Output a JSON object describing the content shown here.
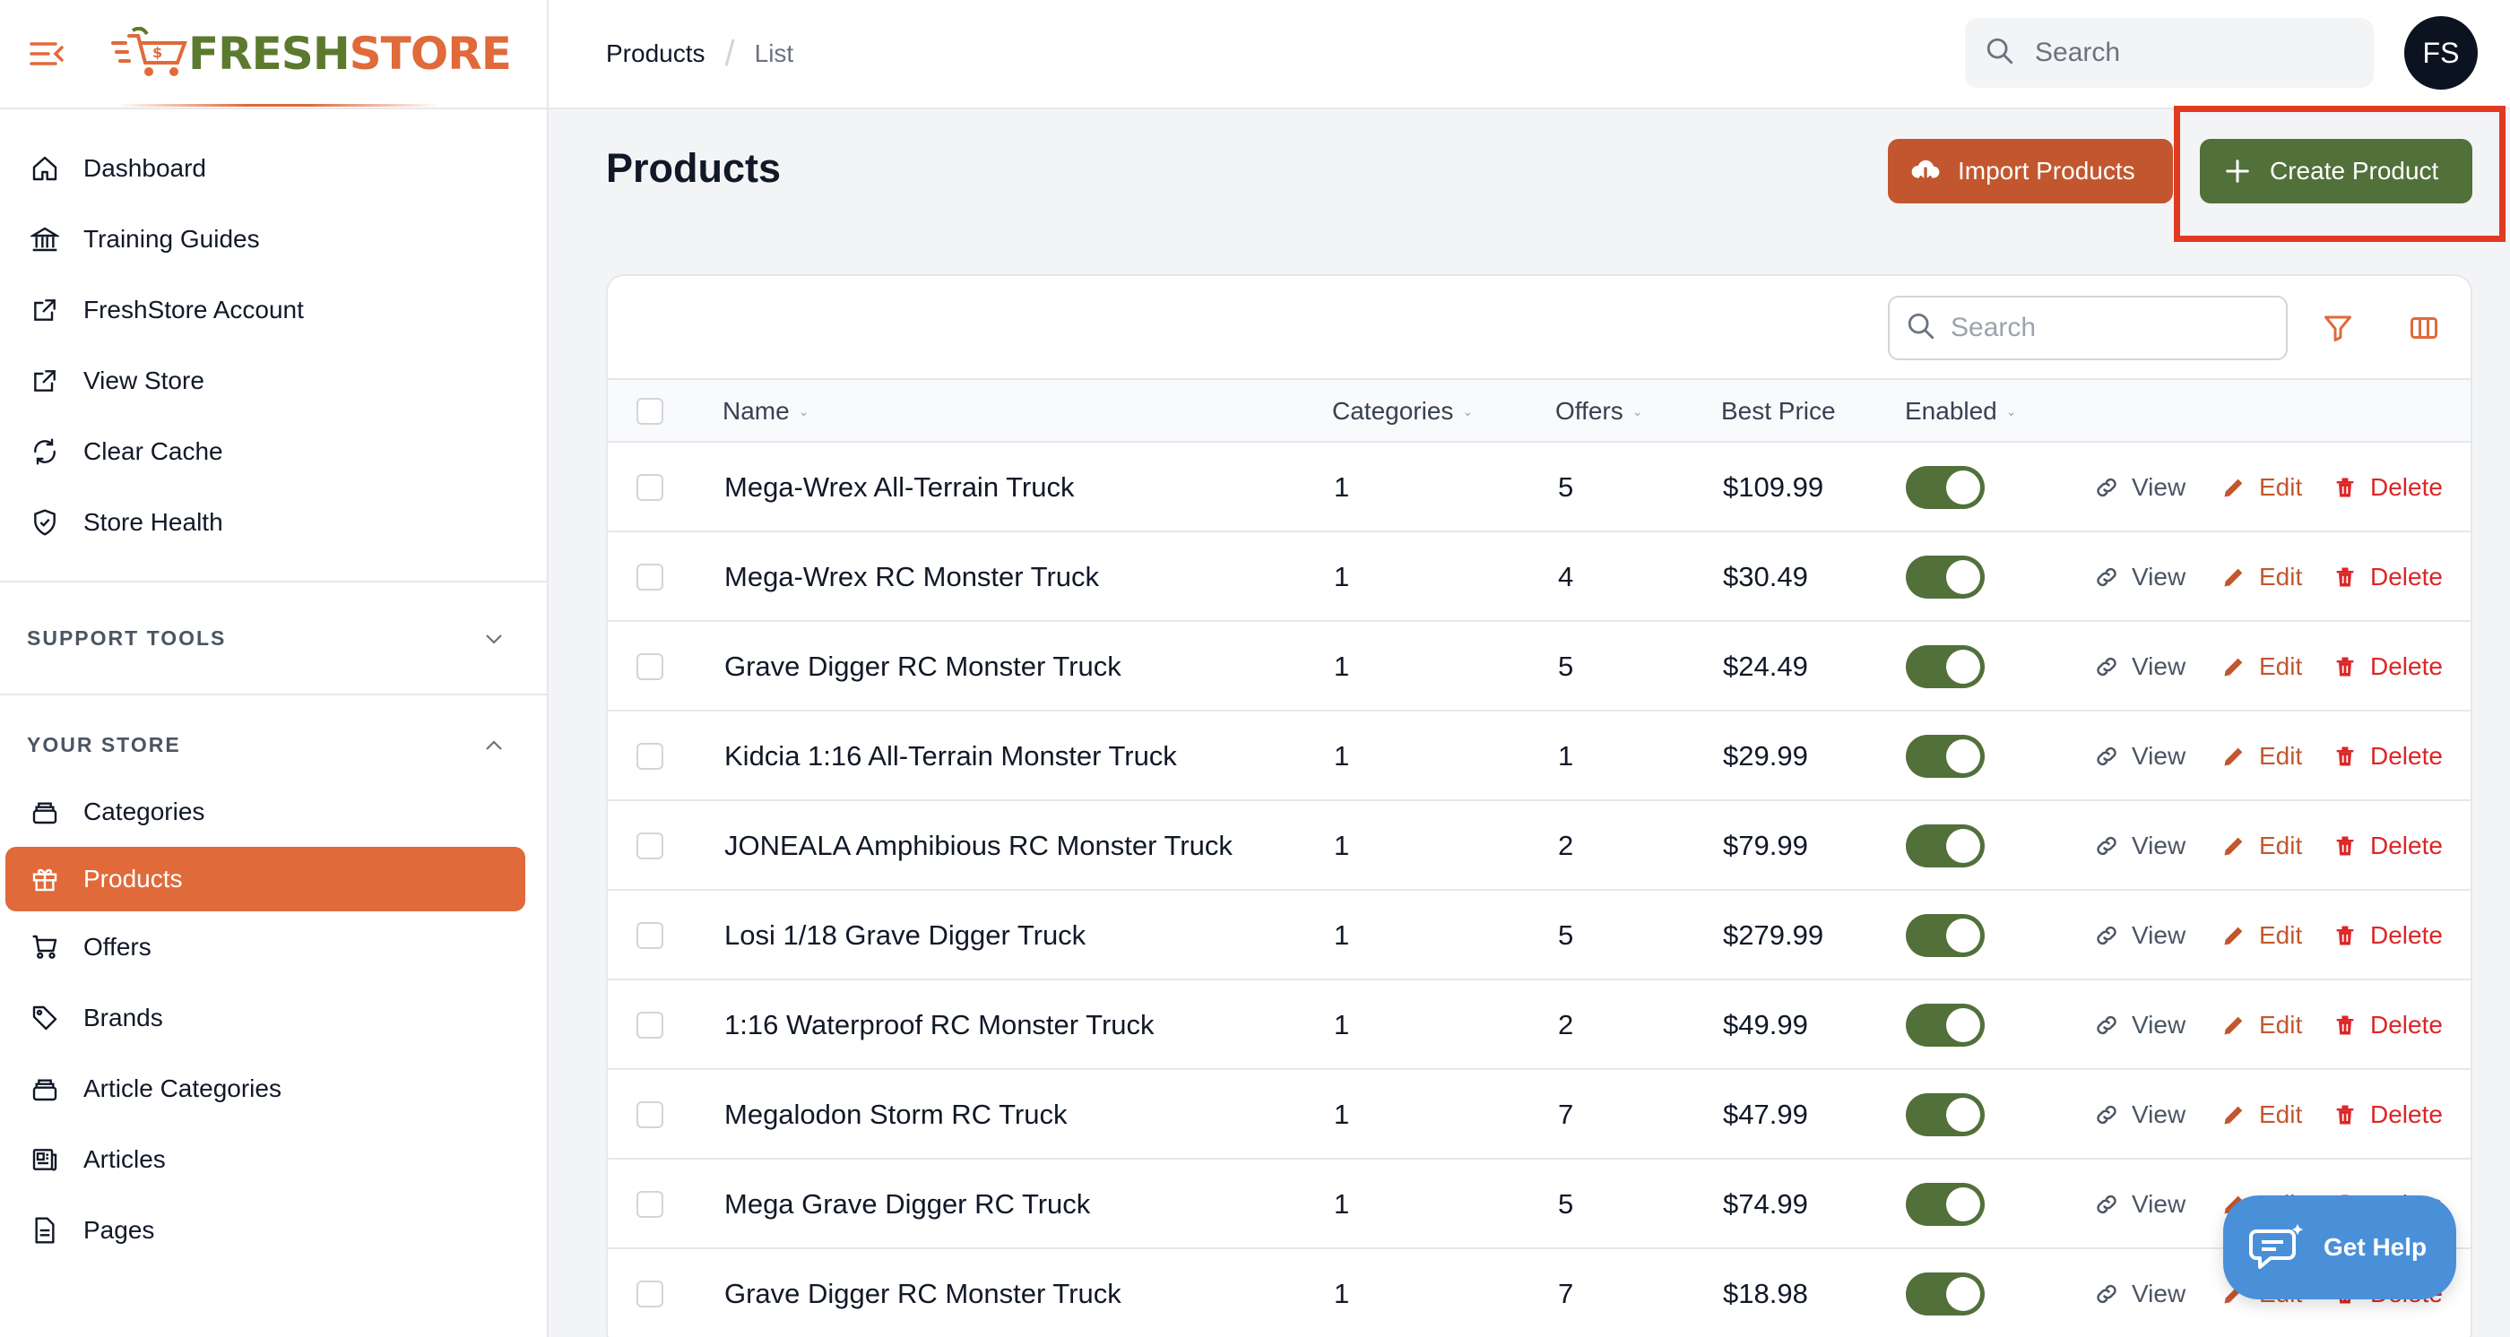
{
  "brand": {
    "name_part1": "FRESH",
    "name_part2": "STORE"
  },
  "breadcrumb": {
    "root": "Products",
    "current": "List"
  },
  "topbar": {
    "search_placeholder": "Search",
    "avatar_initials": "FS"
  },
  "sidebar": {
    "primary": [
      {
        "label": "Dashboard",
        "icon": "home-icon"
      },
      {
        "label": "Training Guides",
        "icon": "bank-icon"
      },
      {
        "label": "FreshStore Account",
        "icon": "external-link-icon"
      },
      {
        "label": "View Store",
        "icon": "external-link-icon"
      },
      {
        "label": "Clear Cache",
        "icon": "refresh-icon"
      },
      {
        "label": "Store Health",
        "icon": "shield-check-icon"
      }
    ],
    "support_tools": {
      "label": "SUPPORT TOOLS",
      "expanded": false
    },
    "your_store": {
      "label": "YOUR STORE",
      "expanded": true,
      "items": [
        {
          "label": "Categories",
          "icon": "stack-icon"
        },
        {
          "label": "Products",
          "icon": "gift-icon",
          "active": true
        },
        {
          "label": "Offers",
          "icon": "cart-icon"
        },
        {
          "label": "Brands",
          "icon": "tag-icon"
        },
        {
          "label": "Article Categories",
          "icon": "stack-icon"
        },
        {
          "label": "Articles",
          "icon": "newspaper-icon"
        },
        {
          "label": "Pages",
          "icon": "document-icon"
        }
      ]
    }
  },
  "main": {
    "title": "Products",
    "import_label": "Import Products",
    "create_label": "Create Product",
    "table_search_placeholder": "Search",
    "columns": {
      "name": "Name",
      "categories": "Categories",
      "offers": "Offers",
      "best_price": "Best Price",
      "enabled": "Enabled"
    },
    "actions": {
      "view": "View",
      "edit": "Edit",
      "delete": "Delete"
    },
    "rows": [
      {
        "name": "Mega-Wrex All-Terrain Truck",
        "categories": "1",
        "offers": "5",
        "best_price": "$109.99",
        "enabled": true
      },
      {
        "name": "Mega-Wrex RC Monster Truck",
        "categories": "1",
        "offers": "4",
        "best_price": "$30.49",
        "enabled": true
      },
      {
        "name": "Grave Digger RC Monster Truck",
        "categories": "1",
        "offers": "5",
        "best_price": "$24.49",
        "enabled": true
      },
      {
        "name": "Kidcia 1:16 All-Terrain Monster Truck",
        "categories": "1",
        "offers": "1",
        "best_price": "$29.99",
        "enabled": true
      },
      {
        "name": "JONEALA Amphibious RC Monster Truck",
        "categories": "1",
        "offers": "2",
        "best_price": "$79.99",
        "enabled": true
      },
      {
        "name": "Losi 1/18 Grave Digger Truck",
        "categories": "1",
        "offers": "5",
        "best_price": "$279.99",
        "enabled": true
      },
      {
        "name": "1:16 Waterproof RC Monster Truck",
        "categories": "1",
        "offers": "2",
        "best_price": "$49.99",
        "enabled": true
      },
      {
        "name": "Megalodon Storm RC Truck",
        "categories": "1",
        "offers": "7",
        "best_price": "$47.99",
        "enabled": true
      },
      {
        "name": "Mega Grave Digger RC Truck",
        "categories": "1",
        "offers": "5",
        "best_price": "$74.99",
        "enabled": true
      },
      {
        "name": "Grave Digger RC Monster Truck",
        "categories": "1",
        "offers": "7",
        "best_price": "$18.98",
        "enabled": true
      }
    ]
  },
  "help": {
    "label": "Get Help"
  },
  "colors": {
    "brand_orange": "#e06a3a",
    "brand_green": "#52703a",
    "delete_red": "#dc2626",
    "highlight_red": "#e03a22"
  }
}
